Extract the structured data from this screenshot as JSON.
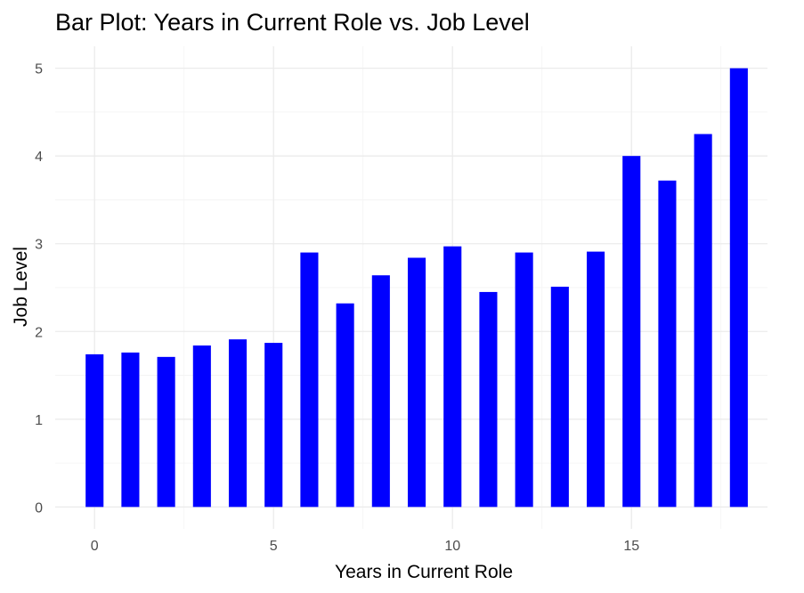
{
  "chart_data": {
    "type": "bar",
    "title": "Bar Plot: Years in Current Role vs. Job Level",
    "xlabel": "Years in Current Role",
    "ylabel": "Job Level",
    "x": [
      0,
      1,
      2,
      3,
      4,
      5,
      6,
      7,
      8,
      9,
      10,
      11,
      12,
      13,
      14,
      15,
      16,
      17,
      18
    ],
    "values": [
      1.74,
      1.76,
      1.71,
      1.84,
      1.91,
      1.87,
      2.9,
      2.32,
      2.64,
      2.84,
      2.97,
      2.45,
      2.9,
      2.51,
      2.91,
      4.0,
      3.72,
      4.25,
      5.0
    ],
    "xlim": [
      -1.1,
      18.8
    ],
    "ylim": [
      -0.25,
      5.25
    ],
    "xticks": [
      0,
      5,
      10,
      15
    ],
    "xtick_labels": [
      "0",
      "5",
      "10",
      "15"
    ],
    "yticks": [
      0,
      1,
      2,
      3,
      4,
      5
    ],
    "ytick_labels": [
      "0",
      "1",
      "2",
      "3",
      "4",
      "5"
    ],
    "bar_color": "#0000FF",
    "grid": true
  }
}
